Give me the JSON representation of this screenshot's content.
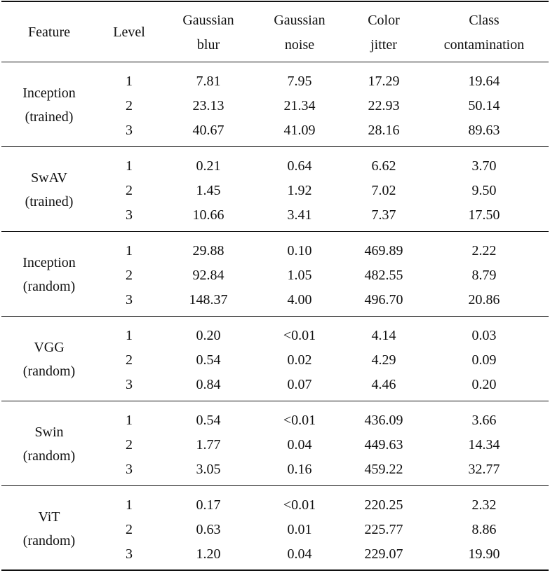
{
  "table": {
    "header": [
      [
        "Feature"
      ],
      [
        "Level"
      ],
      [
        "Gaussian",
        "blur"
      ],
      [
        "Gaussian",
        "noise"
      ],
      [
        "Color",
        "jitter"
      ],
      [
        "Class",
        "contamination"
      ]
    ],
    "groups": [
      {
        "feature": [
          "Inception",
          "(trained)"
        ],
        "rows": [
          [
            "1",
            "7.81",
            "7.95",
            "17.29",
            "19.64"
          ],
          [
            "2",
            "23.13",
            "21.34",
            "22.93",
            "50.14"
          ],
          [
            "3",
            "40.67",
            "41.09",
            "28.16",
            "89.63"
          ]
        ]
      },
      {
        "feature": [
          "SwAV",
          "(trained)"
        ],
        "rows": [
          [
            "1",
            "0.21",
            "0.64",
            "6.62",
            "3.70"
          ],
          [
            "2",
            "1.45",
            "1.92",
            "7.02",
            "9.50"
          ],
          [
            "3",
            "10.66",
            "3.41",
            "7.37",
            "17.50"
          ]
        ]
      },
      {
        "feature": [
          "Inception",
          "(random)"
        ],
        "rows": [
          [
            "1",
            "29.88",
            "0.10",
            "469.89",
            "2.22"
          ],
          [
            "2",
            "92.84",
            "1.05",
            "482.55",
            "8.79"
          ],
          [
            "3",
            "148.37",
            "4.00",
            "496.70",
            "20.86"
          ]
        ]
      },
      {
        "feature": [
          "VGG",
          "(random)"
        ],
        "rows": [
          [
            "1",
            "0.20",
            "<0.01",
            "4.14",
            "0.03"
          ],
          [
            "2",
            "0.54",
            "0.02",
            "4.29",
            "0.09"
          ],
          [
            "3",
            "0.84",
            "0.07",
            "4.46",
            "0.20"
          ]
        ]
      },
      {
        "feature": [
          "Swin",
          "(random)"
        ],
        "rows": [
          [
            "1",
            "0.54",
            "<0.01",
            "436.09",
            "3.66"
          ],
          [
            "2",
            "1.77",
            "0.04",
            "449.63",
            "14.34"
          ],
          [
            "3",
            "3.05",
            "0.16",
            "459.22",
            "32.77"
          ]
        ]
      },
      {
        "feature": [
          "ViT",
          "(random)"
        ],
        "rows": [
          [
            "1",
            "0.17",
            "<0.01",
            "220.25",
            "2.32"
          ],
          [
            "2",
            "0.63",
            "0.01",
            "225.77",
            "8.86"
          ],
          [
            "3",
            "1.20",
            "0.04",
            "229.07",
            "19.90"
          ]
        ]
      }
    ]
  }
}
